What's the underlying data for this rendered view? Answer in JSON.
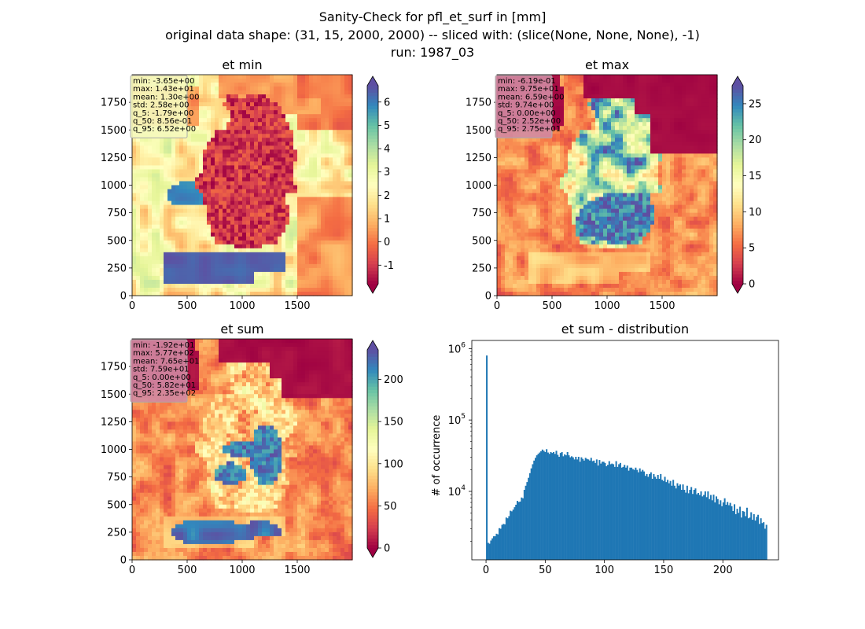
{
  "figure": {
    "title_lines": [
      "Sanity-Check for pfl_et_surf in [mm]",
      "original data shape: (31, 15, 2000, 2000) -- sliced with: (slice(None, None, None), -1)",
      "run: 1987_03"
    ]
  },
  "chart_data": [
    {
      "type": "heatmap",
      "title": "et min",
      "xlim": [
        0,
        2000
      ],
      "ylim": [
        0,
        2000
      ],
      "xticks": [
        0,
        500,
        1000,
        1500
      ],
      "yticks": [
        0,
        250,
        500,
        750,
        1000,
        1250,
        1500,
        1750
      ],
      "colormap": "Spectral",
      "colorbar": {
        "range": [
          -1.8,
          6.7
        ],
        "ticks": [
          -1,
          0,
          1,
          2,
          3,
          4,
          5,
          6
        ],
        "extend": "both"
      },
      "stats_box": {
        "lines": [
          "min: -3.65e+00",
          "max: 1.43e+01",
          "mean: 1.30e+00",
          "std: 2.58e+00",
          "q_5: -1.79e+00",
          "q_50: 8.56e-01",
          "q_95: 6.52e+00"
        ],
        "background": "#f5f8bc"
      }
    },
    {
      "type": "heatmap",
      "title": "et max",
      "xlim": [
        0,
        2000
      ],
      "ylim": [
        0,
        2000
      ],
      "xticks": [
        0,
        500,
        1000,
        1500
      ],
      "yticks": [
        0,
        250,
        500,
        750,
        1000,
        1250,
        1500,
        1750
      ],
      "colormap": "Spectral",
      "colorbar": {
        "range": [
          0,
          27.5
        ],
        "ticks": [
          0,
          5,
          10,
          15,
          20,
          25
        ],
        "extend": "both"
      },
      "stats_box": {
        "lines": [
          "min: -6.19e-01",
          "max: 9.75e+01",
          "mean: 6.59e+00",
          "std: 9.74e+00",
          "q_5: 0.00e+00",
          "q_50: 2.52e+00",
          "q_95: 2.75e+01"
        ],
        "background": "#d18aa2"
      }
    },
    {
      "type": "heatmap",
      "title": "et sum",
      "xlim": [
        0,
        2000
      ],
      "ylim": [
        0,
        2000
      ],
      "xticks": [
        0,
        500,
        1000,
        1500
      ],
      "yticks": [
        0,
        250,
        500,
        750,
        1000,
        1250,
        1500,
        1750
      ],
      "colormap": "Spectral",
      "colorbar": {
        "range": [
          0,
          235
        ],
        "ticks": [
          0,
          50,
          100,
          150,
          200
        ],
        "extend": "both"
      },
      "stats_box": {
        "lines": [
          "min: -1.92e+01",
          "max: 5.77e+02",
          "mean: 7.65e+01",
          "std: 7.59e+01",
          "q_5: 0.00e+00",
          "q_50: 5.82e+01",
          "q_95: 2.35e+02"
        ],
        "background": "#d18aa2"
      }
    },
    {
      "type": "bar",
      "title": "et sum - distribution",
      "xlabel": "",
      "ylabel": "# of occurrence",
      "xlim": [
        -12,
        247
      ],
      "ylim": [
        1100,
        1300000
      ],
      "yscale": "log",
      "xticks": [
        0,
        50,
        100,
        150,
        200
      ],
      "yticks": [
        {
          "value": 10000,
          "base": "10",
          "exp": "4"
        },
        {
          "value": 100000,
          "base": "10",
          "exp": "5"
        },
        {
          "value": 1000000,
          "base": "10",
          "exp": "6"
        }
      ],
      "bar_color": "#1f77b4",
      "bins": {
        "start": 0,
        "width": 1.175,
        "values": [
          800000,
          1900,
          1850,
          2050,
          2200,
          2350,
          2350,
          2550,
          2500,
          3050,
          3000,
          3400,
          3500,
          3450,
          4300,
          4200,
          4500,
          5350,
          5250,
          5550,
          6000,
          6500,
          7350,
          7100,
          7200,
          8200,
          8000,
          10500,
          12000,
          13500,
          15500,
          18000,
          21000,
          24000,
          27000,
          29500,
          32000,
          33500,
          35000,
          36500,
          38500,
          37000,
          35500,
          39000,
          35000,
          33500,
          35500,
          34500,
          35500,
          33500,
          37000,
          32500,
          30500,
          34500,
          35500,
          31000,
          33000,
          32000,
          35500,
          32000,
          30000,
          31000,
          30000,
          28000,
          30500,
          28000,
          30500,
          26000,
          30000,
          28500,
          27000,
          29500,
          28500,
          28000,
          27000,
          29500,
          26500,
          27000,
          25000,
          28000,
          23000,
          27500,
          24500,
          26000,
          26000,
          25000,
          22500,
          23500,
          26500,
          24000,
          24500,
          24000,
          22000,
          26500,
          22000,
          24000,
          25000,
          21500,
          22000,
          23500,
          21500,
          23000,
          19500,
          21500,
          21500,
          20500,
          20000,
          21500,
          20000,
          18500,
          21000,
          19000,
          20000,
          19000,
          16500,
          17500,
          16000,
          17500,
          18500,
          15000,
          17500,
          16000,
          15000,
          17000,
          15000,
          17500,
          14500,
          14000,
          16000,
          13500,
          14500,
          13000,
          14000,
          12000,
          14500,
          12000,
          11000,
          13000,
          12000,
          12500,
          10500,
          12500,
          10500,
          9600,
          12000,
          9400,
          10500,
          11500,
          9200,
          10500,
          11000,
          9100,
          9500,
          8900,
          10000,
          8500,
          8900,
          10000,
          8300,
          10000,
          7800,
          8900,
          7500,
          9000,
          7000,
          8500,
          7800,
          6600,
          7500,
          6200,
          7000,
          8000,
          6500,
          7100,
          6400,
          6900,
          6200,
          5300,
          6600,
          4800,
          5700,
          5000,
          6100,
          4300,
          5300,
          5200,
          4500,
          5900,
          4200,
          4300,
          5100,
          4000,
          4800,
          3900,
          4400,
          4700,
          3500,
          4200,
          3600,
          3700,
          3000,
          3400
        ]
      }
    }
  ]
}
